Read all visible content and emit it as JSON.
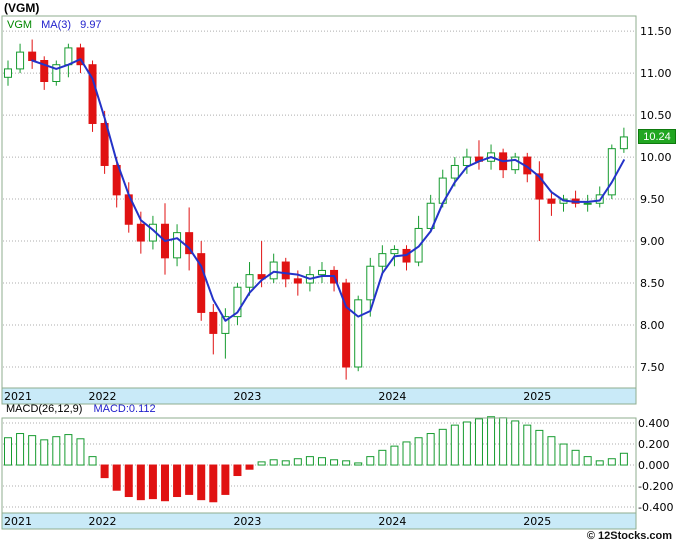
{
  "header": {
    "title": "(VGM)"
  },
  "main_chart": {
    "legend": {
      "symbol": "VGM",
      "ma_label": "MA(3)",
      "ma_value": "9.97"
    },
    "last_price": "10.24",
    "y_axis_ticks": [
      11.5,
      11.0,
      10.5,
      10.0,
      9.5,
      9.0,
      8.5,
      8.0,
      7.5
    ]
  },
  "macd_panel": {
    "legend": {
      "label": "MACD(26,12,9)",
      "value_label": "MACD:0.112"
    },
    "y_axis_ticks": [
      0.4,
      0.2,
      0.0,
      -0.2,
      -0.4
    ]
  },
  "x_axis": {
    "years": [
      "2021",
      "2022",
      "2023",
      "2024",
      "2025"
    ],
    "year_indices": [
      0,
      7,
      19,
      31,
      43
    ]
  },
  "footer": {
    "credit": "© 12Stocks.com"
  },
  "colors": {
    "up": "#169B2F",
    "up_fill": "#FFFFFF",
    "down": "#E01212",
    "ma_line": "#2433C8",
    "legend_green": "#008800",
    "legend_blue": "#2222CC",
    "band_bg": "#C9EAF8",
    "panel_border": "#8FAE8F",
    "grid": "#ADADAD",
    "axis_text": "#000000",
    "price_tag_bg": "#21A621",
    "price_tag_border": "#0E7A0E",
    "price_tag_text": "#FFFFFF"
  },
  "chart_data": [
    {
      "type": "candlestick",
      "symbol": "VGM",
      "interval": "monthly",
      "ylim": [
        7.25,
        11.68
      ],
      "y_ticks": [
        11.5,
        11.0,
        10.5,
        10.0,
        9.5,
        9.0,
        8.5,
        8.0,
        7.5
      ],
      "x_year_start_indices": {
        "2021": 0,
        "2022": 7,
        "2023": 19,
        "2024": 31,
        "2025": 43
      },
      "ma_period": 3,
      "ma_last_value": 9.97,
      "last_close": 10.24,
      "candles_ohlc": [
        [
          10.95,
          11.15,
          10.85,
          11.05
        ],
        [
          11.05,
          11.35,
          11.0,
          11.25
        ],
        [
          11.25,
          11.4,
          11.05,
          11.15
        ],
        [
          11.15,
          11.2,
          10.8,
          10.9
        ],
        [
          10.9,
          11.15,
          10.85,
          11.1
        ],
        [
          11.1,
          11.35,
          10.95,
          11.3
        ],
        [
          11.3,
          11.35,
          11.0,
          11.1
        ],
        [
          11.1,
          11.15,
          10.3,
          10.4
        ],
        [
          10.4,
          10.55,
          9.8,
          9.9
        ],
        [
          9.9,
          10.0,
          9.4,
          9.55
        ],
        [
          9.55,
          9.7,
          9.1,
          9.2
        ],
        [
          9.2,
          9.35,
          8.85,
          9.0
        ],
        [
          9.0,
          9.3,
          8.9,
          9.2
        ],
        [
          9.2,
          9.45,
          8.6,
          8.8
        ],
        [
          8.8,
          9.2,
          8.7,
          9.1
        ],
        [
          9.1,
          9.4,
          8.65,
          8.85
        ],
        [
          8.85,
          9.0,
          8.05,
          8.15
        ],
        [
          8.15,
          8.25,
          7.65,
          7.9
        ],
        [
          7.9,
          8.2,
          7.6,
          8.1
        ],
        [
          8.1,
          8.5,
          8.0,
          8.45
        ],
        [
          8.45,
          8.75,
          8.35,
          8.6
        ],
        [
          8.6,
          9.0,
          8.45,
          8.55
        ],
        [
          8.55,
          8.85,
          8.5,
          8.75
        ],
        [
          8.75,
          8.8,
          8.45,
          8.55
        ],
        [
          8.55,
          8.65,
          8.35,
          8.5
        ],
        [
          8.5,
          8.7,
          8.4,
          8.6
        ],
        [
          8.6,
          8.75,
          8.5,
          8.65
        ],
        [
          8.65,
          8.7,
          8.4,
          8.5
        ],
        [
          8.5,
          8.55,
          7.35,
          7.5
        ],
        [
          7.5,
          8.35,
          7.45,
          8.3
        ],
        [
          8.3,
          8.8,
          8.1,
          8.7
        ],
        [
          8.7,
          8.95,
          8.6,
          8.85
        ],
        [
          8.85,
          8.95,
          8.7,
          8.9
        ],
        [
          8.9,
          8.95,
          8.65,
          8.75
        ],
        [
          8.75,
          9.3,
          8.7,
          9.15
        ],
        [
          9.15,
          9.55,
          9.1,
          9.45
        ],
        [
          9.45,
          9.85,
          9.4,
          9.75
        ],
        [
          9.75,
          10.0,
          9.65,
          9.9
        ],
        [
          9.9,
          10.1,
          9.8,
          10.0
        ],
        [
          10.0,
          10.2,
          9.85,
          9.95
        ],
        [
          9.95,
          10.15,
          9.85,
          10.05
        ],
        [
          10.05,
          10.1,
          9.75,
          9.85
        ],
        [
          9.85,
          10.05,
          9.8,
          10.0
        ],
        [
          10.0,
          10.05,
          9.7,
          9.8
        ],
        [
          9.8,
          9.95,
          9.0,
          9.5
        ],
        [
          9.5,
          9.6,
          9.3,
          9.45
        ],
        [
          9.45,
          9.55,
          9.35,
          9.5
        ],
        [
          9.5,
          9.6,
          9.4,
          9.45
        ],
        [
          9.45,
          9.55,
          9.35,
          9.45
        ],
        [
          9.45,
          9.65,
          9.4,
          9.55
        ],
        [
          9.55,
          10.15,
          9.5,
          10.1
        ],
        [
          10.1,
          10.35,
          10.05,
          10.24
        ]
      ]
    },
    {
      "type": "bar",
      "title": "MACD(26,12,9)",
      "last_value": 0.112,
      "ylim": [
        -0.457,
        0.448
      ],
      "y_ticks": [
        0.4,
        0.2,
        0.0,
        -0.2,
        -0.4
      ],
      "values": [
        0.26,
        0.3,
        0.28,
        0.24,
        0.27,
        0.29,
        0.25,
        0.08,
        -0.12,
        -0.24,
        -0.3,
        -0.33,
        -0.32,
        -0.34,
        -0.3,
        -0.28,
        -0.33,
        -0.35,
        -0.28,
        -0.1,
        -0.04,
        0.03,
        0.05,
        0.04,
        0.06,
        0.08,
        0.07,
        0.05,
        0.04,
        0.02,
        0.08,
        0.14,
        0.18,
        0.22,
        0.26,
        0.3,
        0.34,
        0.38,
        0.41,
        0.44,
        0.46,
        0.45,
        0.42,
        0.38,
        0.33,
        0.27,
        0.2,
        0.14,
        0.08,
        0.04,
        0.06,
        0.112
      ]
    }
  ]
}
